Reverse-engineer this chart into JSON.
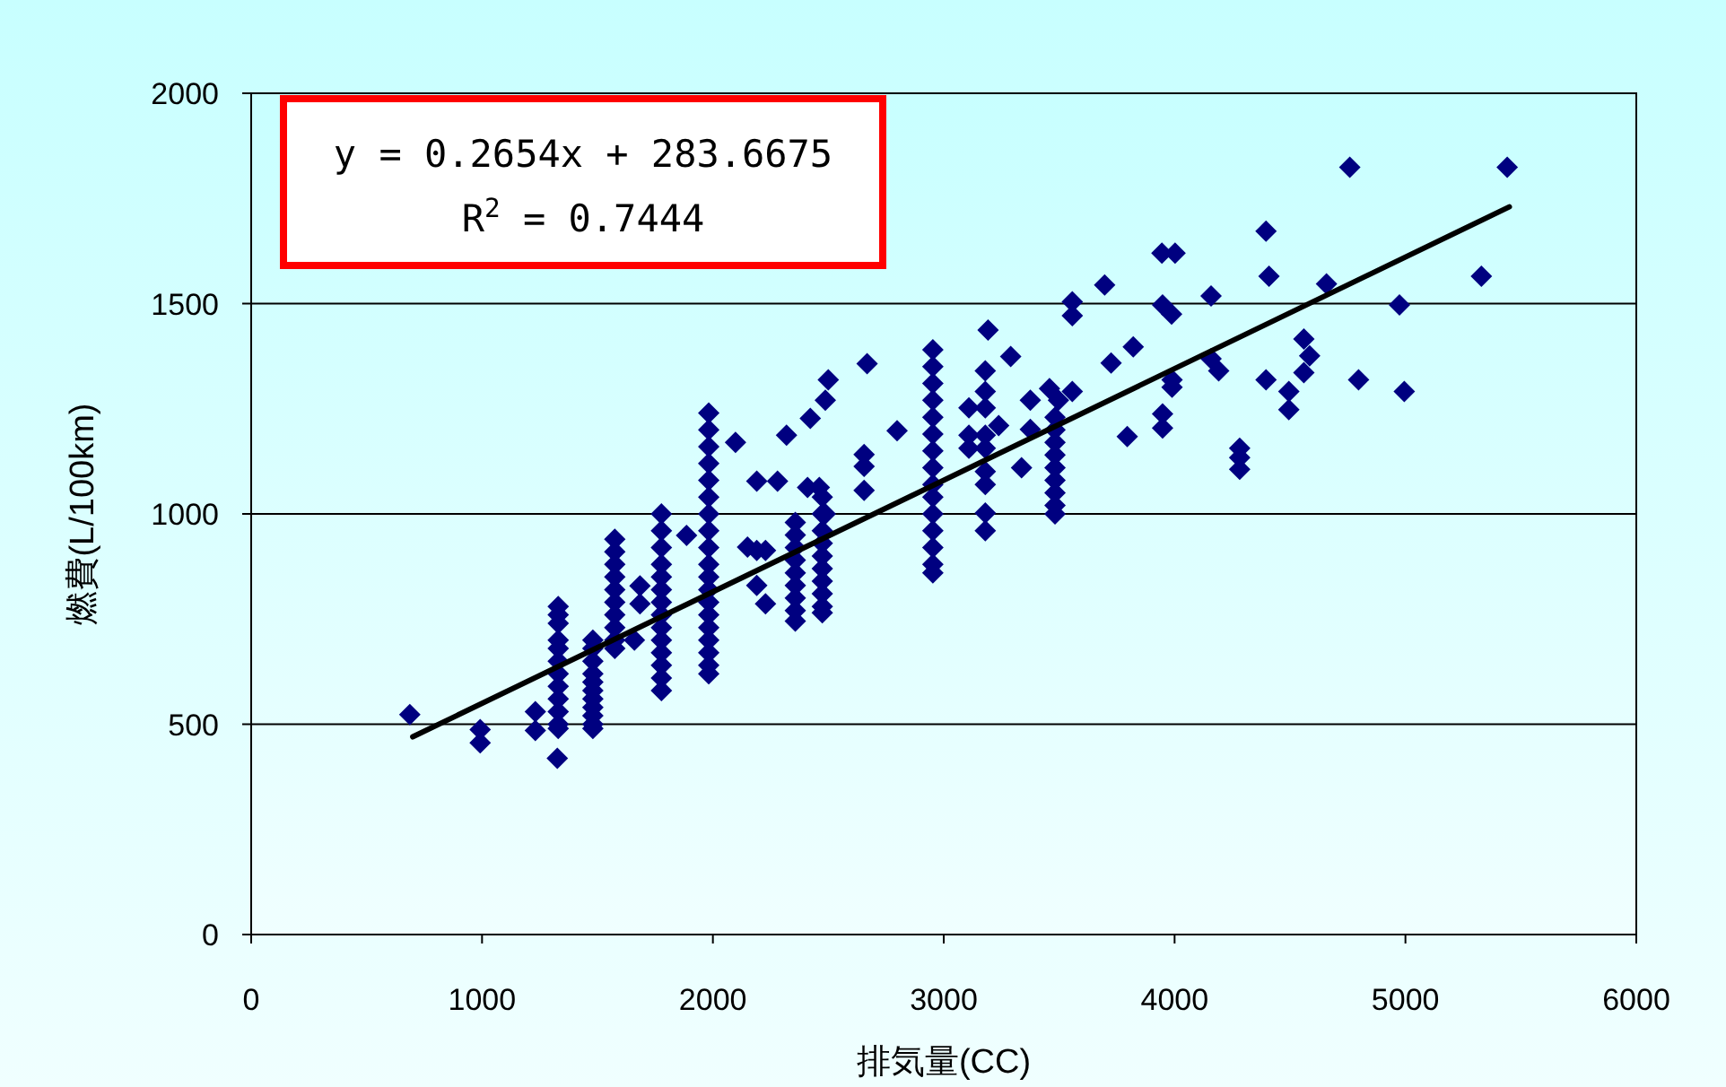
{
  "chart_data": {
    "type": "scatter",
    "xlabel": "排気量(CC)",
    "ylabel": "燃費(L/100km)",
    "xlim": [
      0,
      6000
    ],
    "xticks": [
      0,
      1000,
      2000,
      3000,
      4000,
      5000,
      6000
    ],
    "ylim": [
      0,
      2000
    ],
    "yticks": [
      0,
      500,
      1000,
      1500,
      2000
    ],
    "grid": "y",
    "annotations": [
      "y = 0.2654x + 283.6675",
      "R$^{2}$ = 0.7444"
    ],
    "series": [
      {
        "color": "#000080",
        "marker": "diamond",
        "x": [
          687,
          992,
          992,
          1231,
          1231,
          1326,
          1330,
          1330,
          1330,
          1330,
          1330,
          1330,
          1330,
          1330,
          1330,
          1330,
          1330,
          1330,
          1480,
          1480,
          1480,
          1480,
          1480,
          1480,
          1480,
          1480,
          1480,
          1480,
          1480,
          1575,
          1575,
          1575,
          1575,
          1575,
          1575,
          1575,
          1575,
          1575,
          1575,
          1684,
          1684,
          1660,
          1777,
          1777,
          1777,
          1777,
          1777,
          1777,
          1777,
          1777,
          1777,
          1777,
          1777,
          1777,
          1777,
          1777,
          1886,
          1982,
          1982,
          1982,
          1982,
          1982,
          1982,
          1982,
          1982,
          1982,
          1982,
          1982,
          1982,
          1982,
          1982,
          1982,
          1982,
          1982,
          1982,
          1982,
          2098,
          2150,
          2190,
          2228,
          2190,
          2228,
          2190,
          2280,
          2319,
          2357,
          2357,
          2357,
          2357,
          2357,
          2357,
          2357,
          2357,
          2357,
          2422,
          2410,
          2461,
          2474,
          2474,
          2474,
          2474,
          2474,
          2474,
          2474,
          2474,
          2474,
          2474,
          2487,
          2500,
          2487,
          2655,
          2655,
          2655,
          2668,
          2798,
          2953,
          2953,
          2953,
          2953,
          2953,
          2953,
          2953,
          2953,
          2953,
          2953,
          2953,
          2953,
          2953,
          2953,
          2953,
          3109,
          3109,
          3109,
          3180,
          3180,
          3180,
          3180,
          3180,
          3180,
          3180,
          3180,
          3180,
          3192,
          3238,
          3290,
          3337,
          3375,
          3375,
          3458,
          3497,
          3557,
          3482,
          3482,
          3482,
          3482,
          3482,
          3482,
          3482,
          3482,
          3482,
          3557,
          3557,
          3697,
          3725,
          3821,
          3795,
          3945,
          4002,
          3948,
          3987,
          3989,
          3989,
          3948,
          3948,
          4158,
          4158,
          4191,
          4282,
          4282,
          4282,
          4396,
          4409,
          4396,
          4495,
          4495,
          4560,
          4585,
          4560,
          4658,
          4759,
          4797,
          4974,
          4995,
          5329,
          5441
        ],
        "values": [
          523,
          487,
          456,
          530,
          485,
          419,
          780,
          760,
          740,
          700,
          680,
          650,
          620,
          590,
          560,
          530,
          500,
          490,
          700,
          680,
          650,
          620,
          600,
          580,
          560,
          540,
          520,
          500,
          490,
          940,
          910,
          880,
          850,
          820,
          790,
          760,
          730,
          700,
          680,
          829,
          786,
          700,
          1000,
          960,
          920,
          880,
          850,
          820,
          790,
          760,
          730,
          700,
          670,
          640,
          610,
          580,
          949,
          1240,
          1200,
          1160,
          1120,
          1080,
          1040,
          1000,
          960,
          920,
          880,
          850,
          820,
          790,
          760,
          730,
          700,
          670,
          640,
          620,
          1170,
          921,
          913,
          913,
          830,
          786,
          1078,
          1078,
          1187,
          980,
          950,
          920,
          890,
          860,
          830,
          800,
          770,
          745,
          1227,
          1063,
          1063,
          1040,
          1000,
          960,
          930,
          900,
          870,
          840,
          810,
          780,
          765,
          1270,
          1319,
          1000,
          1141,
          1113,
          1056,
          1357,
          1198,
          1390,
          1350,
          1310,
          1270,
          1230,
          1190,
          1150,
          1110,
          1070,
          1040,
          1000,
          960,
          920,
          880,
          860,
          1252,
          1187,
          1156,
          1340,
          1291,
          1252,
          1187,
          1156,
          1101,
          1070,
          1002,
          960,
          1437,
          1210,
          1374,
          1110,
          1270,
          1201,
          1298,
          1270,
          1291,
          1230,
          1200,
          1170,
          1140,
          1110,
          1080,
          1050,
          1020,
          1000,
          1504,
          1471,
          1544,
          1359,
          1397,
          1184,
          1620,
          1620,
          1497,
          1475,
          1319,
          1301,
          1238,
          1204,
          1518,
          1369,
          1340,
          1156,
          1134,
          1106,
          1672,
          1565,
          1319,
          1291,
          1248,
          1416,
          1376,
          1336,
          1547,
          1824,
          1319,
          1497,
          1291,
          1565,
          1824
        ]
      },
      {
        "type": "line",
        "color": "#000000",
        "x": [
          700,
          5450
        ],
        "values": [
          470,
          1730
        ]
      }
    ]
  }
}
